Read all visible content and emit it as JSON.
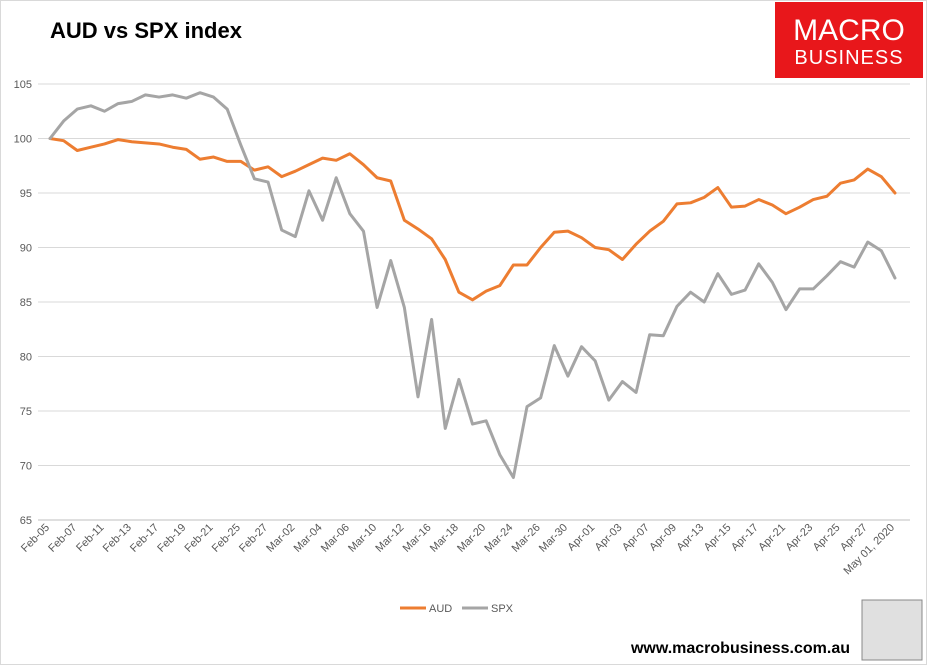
{
  "chart_data": {
    "type": "line",
    "title": "AUD vs SPX index",
    "categories": [
      "Feb-05",
      null,
      "Feb-07",
      null,
      "Feb-11",
      null,
      "Feb-13",
      null,
      "Feb-17",
      null,
      "Feb-19",
      null,
      "Feb-21",
      null,
      "Feb-25",
      null,
      "Feb-27",
      null,
      "Mar-02",
      null,
      "Mar-04",
      null,
      "Mar-06",
      null,
      "Mar-10",
      null,
      "Mar-12",
      null,
      "Mar-16",
      null,
      "Mar-18",
      null,
      "Mar-20",
      null,
      "Mar-24",
      null,
      "Mar-26",
      null,
      "Mar-30",
      null,
      "Apr-01",
      null,
      "Apr-03",
      null,
      "Apr-07",
      null,
      "Apr-09",
      null,
      "Apr-13",
      null,
      "Apr-15",
      null,
      "Apr-17",
      null,
      "Apr-21",
      null,
      "Apr-23",
      null,
      "Apr-25",
      null,
      "Apr-27",
      null,
      "May 01, 2020"
    ],
    "series": [
      {
        "name": "AUD",
        "color": "#ed7d31",
        "values": [
          100,
          99.8,
          98.9,
          99.2,
          99.5,
          99.9,
          99.7,
          99.6,
          99.5,
          99.2,
          99.0,
          98.1,
          98.3,
          97.9,
          97.9,
          97.1,
          97.4,
          96.5,
          97.0,
          97.6,
          98.2,
          98.0,
          98.6,
          97.6,
          96.4,
          96.1,
          92.5,
          91.7,
          90.8,
          88.9,
          85.9,
          85.2,
          86.0,
          86.5,
          88.4,
          88.4,
          90.0,
          91.4,
          91.5,
          90.9,
          90.0,
          89.8,
          88.9,
          90.3,
          91.5,
          92.4,
          94.0,
          94.1,
          94.6,
          95.5,
          93.7,
          93.8,
          94.4,
          93.9,
          93.1,
          93.7,
          94.4,
          94.7,
          95.9,
          96.2,
          97.2,
          96.5,
          95.0
        ]
      },
      {
        "name": "SPX",
        "color": "#a5a5a5",
        "values": [
          100,
          101.6,
          102.7,
          103.0,
          102.5,
          103.2,
          103.4,
          104.0,
          103.8,
          104.0,
          103.7,
          104.2,
          103.8,
          102.7,
          99.4,
          96.3,
          96.0,
          91.6,
          91.0,
          95.2,
          92.5,
          96.4,
          93.1,
          91.5,
          84.5,
          88.8,
          84.5,
          76.3,
          83.4,
          73.4,
          77.9,
          73.8,
          74.1,
          71.0,
          68.9,
          75.4,
          76.2,
          81.0,
          78.2,
          80.9,
          79.6,
          76.0,
          77.7,
          76.7,
          82.0,
          81.9,
          84.6,
          85.9,
          85.0,
          87.6,
          85.7,
          86.1,
          88.5,
          86.8,
          84.3,
          86.2,
          86.2,
          87.4,
          88.7,
          88.2,
          90.5,
          89.7,
          87.2
        ]
      }
    ],
    "ylim": [
      65,
      105
    ],
    "yticks": [
      65,
      70,
      75,
      80,
      85,
      90,
      95,
      100,
      105
    ],
    "grid": true,
    "legend": "bottom"
  },
  "branding": {
    "logo": [
      "MACRO",
      "BUSINESS"
    ],
    "url": "www.macrobusiness.com.au"
  }
}
